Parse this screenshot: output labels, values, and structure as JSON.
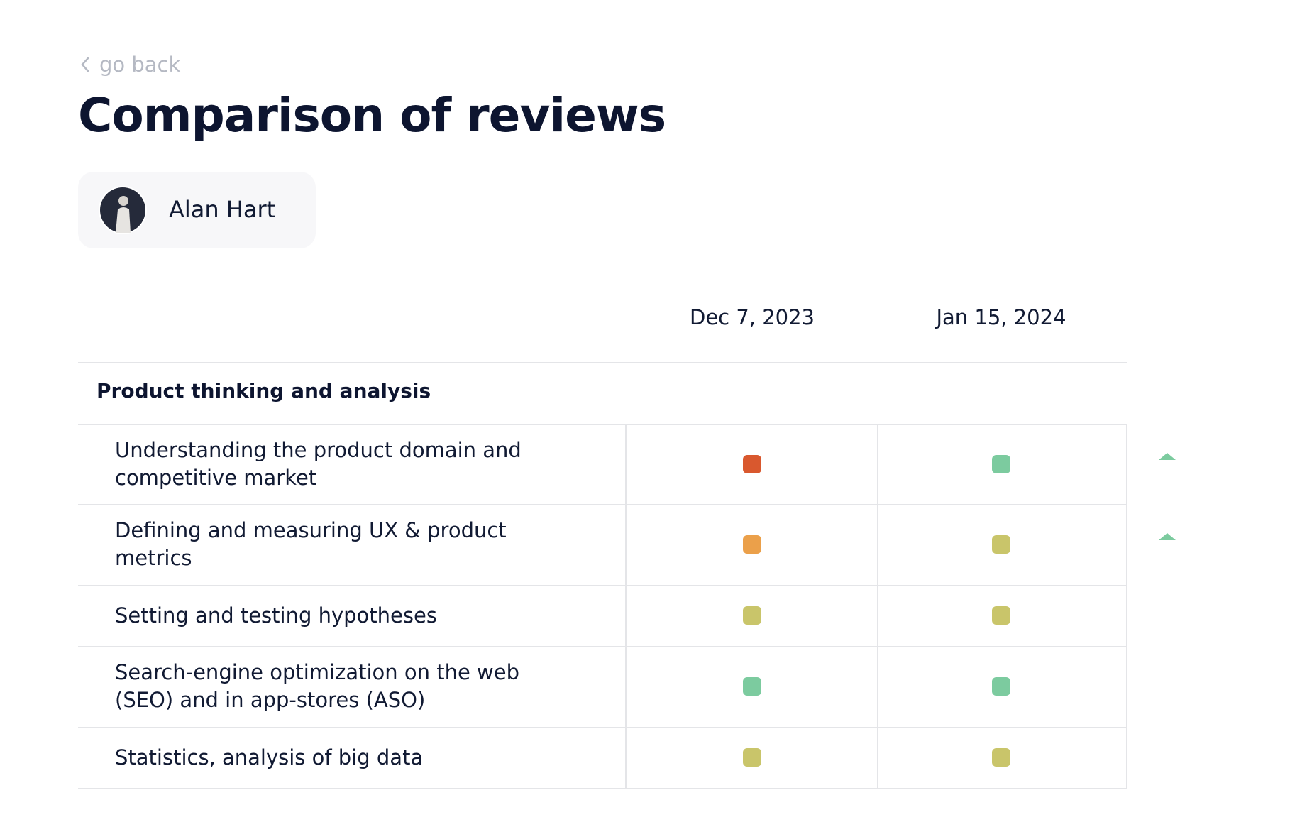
{
  "back": "go back",
  "title": "Comparison of reviews",
  "user": {
    "name": "Alan Hart"
  },
  "columns": [
    "Dec 7, 2023",
    "Jan 15, 2024"
  ],
  "section": {
    "title": "Product thinking and analysis",
    "rows": [
      {
        "label": "Understanding the product domain and competitive market",
        "colors": [
          "#d9582e",
          "#7ccb9f"
        ],
        "trend": "up"
      },
      {
        "label": "Defining and measuring UX & product metrics",
        "colors": [
          "#eba04a",
          "#c9c56a"
        ],
        "trend": "up"
      },
      {
        "label": "Setting and testing hypotheses",
        "colors": [
          "#c9c56a",
          "#c9c56a"
        ]
      },
      {
        "label": "Search-engine optimization on the web (SEO) and in app-stores (ASO)",
        "colors": [
          "#7ccb9f",
          "#7ccb9f"
        ]
      },
      {
        "label": "Statistics, analysis of big data",
        "colors": [
          "#c9c56a",
          "#c9c56a"
        ]
      }
    ]
  }
}
